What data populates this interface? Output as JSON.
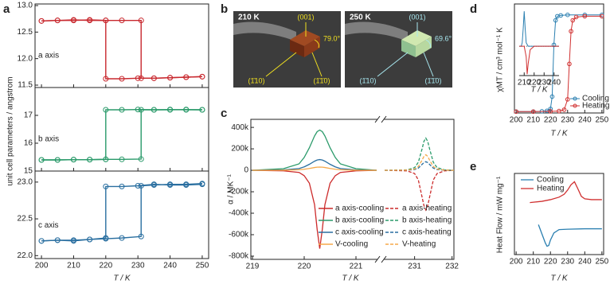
{
  "chart_data": [
    {
      "type": "line",
      "panel": "a",
      "xlabel": "T / K",
      "ylabel": "unit cell parameters / angstrom",
      "xlim": [
        198,
        252
      ],
      "xticks": [
        200,
        210,
        220,
        230,
        240,
        250
      ],
      "subplots": [
        {
          "label": "a axis",
          "color": "#c8282e",
          "ylim": [
            11.455,
            13.03
          ],
          "yticks": [
            11.5,
            {
              "value": 12,
              "label": "12.0"
            },
            12.5,
            {
              "value": 13,
              "label": "13.0"
            }
          ],
          "series": [
            {
              "x": [
                250,
                245,
                240,
                235,
                230,
                225,
                220,
                220,
                215,
                210,
                205,
                200
              ],
              "values": [
                11.66,
                11.65,
                11.64,
                11.63,
                11.63,
                11.62,
                11.62,
                12.72,
                12.72,
                12.73,
                12.72,
                12.71
              ]
            },
            {
              "x": [
                200,
                205,
                210,
                215,
                220,
                225,
                231,
                231,
                235,
                240,
                245,
                250
              ],
              "values": [
                12.71,
                12.72,
                12.72,
                12.73,
                12.72,
                12.72,
                12.72,
                11.63,
                11.63,
                11.64,
                11.65,
                11.66
              ]
            }
          ]
        },
        {
          "label": "b axis",
          "color": "#2a9a6a",
          "ylim": [
            15.0,
            18.0
          ],
          "yticks": [
            15,
            16,
            17
          ],
          "series": [
            {
              "x": [
                250,
                245,
                240,
                235,
                230,
                225,
                220,
                220,
                215,
                210,
                205,
                200
              ],
              "values": [
                17.2,
                17.21,
                17.2,
                17.2,
                17.21,
                17.2,
                17.2,
                15.42,
                15.41,
                15.41,
                15.4,
                15.4
              ]
            },
            {
              "x": [
                200,
                205,
                210,
                215,
                220,
                225,
                231,
                231,
                235,
                240,
                245,
                250
              ],
              "values": [
                15.4,
                15.4,
                15.41,
                15.41,
                15.42,
                15.42,
                15.43,
                17.2,
                17.2,
                17.21,
                17.2,
                17.2
              ]
            }
          ]
        },
        {
          "label": "c axis",
          "color": "#2a6fa0",
          "ylim": [
            21.96,
            23.15
          ],
          "yticks": [
            {
              "value": 22,
              "label": "22.0"
            },
            22.5,
            {
              "value": 23,
              "label": "23.0"
            }
          ],
          "series": [
            {
              "x": [
                250,
                245,
                240,
                235,
                230,
                225,
                220,
                220,
                215,
                210,
                205,
                200
              ],
              "values": [
                22.97,
                22.96,
                22.96,
                22.97,
                22.95,
                22.94,
                22.94,
                22.24,
                22.22,
                22.21,
                22.21,
                22.2
              ]
            },
            {
              "x": [
                200,
                205,
                210,
                215,
                220,
                225,
                231,
                231,
                235,
                240,
                245,
                250
              ],
              "values": [
                22.2,
                22.21,
                22.2,
                22.22,
                22.23,
                22.24,
                22.26,
                22.95,
                22.96,
                22.97,
                22.97,
                22.98
              ]
            }
          ]
        }
      ]
    },
    {
      "type": "line",
      "panel": "c",
      "xlabel": "T / K",
      "ylabel": "α / MK⁻¹",
      "xlim": [
        [
          219,
          221.4
        ],
        [
          230.2,
          232.05
        ]
      ],
      "xticks": [
        219,
        220,
        221,
        231,
        232
      ],
      "ylim": [
        -830000,
        475000
      ],
      "yticks": [
        {
          "value": -800000,
          "label": "-800k"
        },
        {
          "value": -600000,
          "label": "-600k"
        },
        {
          "value": -400000,
          "label": "-400k"
        },
        {
          "value": -200000,
          "label": "-200k"
        },
        0,
        {
          "value": 200000,
          "label": "200k"
        },
        {
          "value": 400000,
          "label": "400k"
        }
      ],
      "series": [
        {
          "name": "a axis-cooling",
          "color": "#cc2a2a",
          "linestyle": "solid",
          "x": [
            219,
            219.6,
            219.9,
            220,
            220.1,
            220.2,
            220.25,
            220.3,
            220.35,
            220.4,
            220.5,
            220.6,
            220.7,
            221,
            221.4
          ],
          "values": [
            0,
            -5000,
            -20000,
            -50000,
            -120000,
            -320000,
            -550000,
            -730000,
            -550000,
            -320000,
            -120000,
            -50000,
            -20000,
            -5000,
            0
          ]
        },
        {
          "name": "a axis-heating",
          "color": "#cc2a2a",
          "linestyle": "dashed",
          "x": [
            230.2,
            230.8,
            231,
            231.1,
            231.2,
            231.25,
            231.3,
            231.35,
            231.4,
            231.5,
            231.6,
            231.8,
            232.05
          ],
          "values": [
            0,
            -5000,
            -30000,
            -90000,
            -250000,
            -330000,
            -370000,
            -330000,
            -250000,
            -90000,
            -30000,
            -5000,
            0
          ]
        },
        {
          "name": "b axis-cooling",
          "color": "#2a9a6a",
          "linestyle": "solid",
          "x": [
            219,
            219.6,
            219.9,
            220,
            220.1,
            220.2,
            220.25,
            220.3,
            220.35,
            220.4,
            220.5,
            220.6,
            220.7,
            221,
            221.4
          ],
          "values": [
            0,
            15000,
            60000,
            120000,
            210000,
            320000,
            360000,
            375000,
            360000,
            320000,
            210000,
            120000,
            60000,
            15000,
            0
          ]
        },
        {
          "name": "b axis-heating",
          "color": "#2a9a6a",
          "linestyle": "dashed",
          "x": [
            230.2,
            230.8,
            231,
            231.1,
            231.2,
            231.25,
            231.3,
            231.35,
            231.4,
            231.5,
            231.6,
            231.8,
            232.05
          ],
          "values": [
            0,
            4000,
            25000,
            75000,
            200000,
            270000,
            300000,
            270000,
            200000,
            75000,
            25000,
            4000,
            0
          ]
        },
        {
          "name": "c axis-cooling",
          "color": "#2a6fa0",
          "linestyle": "solid",
          "x": [
            219,
            219.6,
            219.9,
            220,
            220.1,
            220.2,
            220.25,
            220.3,
            220.35,
            220.4,
            220.5,
            220.6,
            220.7,
            221,
            221.4
          ],
          "values": [
            0,
            4000,
            16000,
            32000,
            56000,
            85000,
            96000,
            100000,
            96000,
            85000,
            56000,
            32000,
            16000,
            4000,
            0
          ]
        },
        {
          "name": "c axis-heating",
          "color": "#2a6fa0",
          "linestyle": "dashed",
          "x": [
            230.2,
            230.8,
            231,
            231.1,
            231.2,
            231.25,
            231.3,
            231.35,
            231.4,
            231.5,
            231.6,
            231.8,
            232.05
          ],
          "values": [
            0,
            1000,
            7000,
            20000,
            55000,
            72000,
            80000,
            72000,
            55000,
            20000,
            7000,
            1000,
            0
          ]
        },
        {
          "name": "V-cooling",
          "color": "#f5a94a",
          "linestyle": "solid",
          "x": [
            219,
            219.6,
            219.9,
            220,
            220.1,
            220.2,
            220.25,
            220.3,
            220.35,
            220.4,
            220.5,
            220.6,
            220.7,
            221,
            221.4
          ],
          "values": [
            0,
            1000,
            5000,
            10000,
            17000,
            26000,
            29000,
            30000,
            29000,
            26000,
            17000,
            10000,
            5000,
            1000,
            0
          ]
        },
        {
          "name": "V-heating",
          "color": "#f5a94a",
          "linestyle": "dashed",
          "x": [
            230.2,
            230.8,
            231,
            231.1,
            231.2,
            231.25,
            231.3,
            231.35,
            231.4,
            231.5,
            231.6,
            231.8,
            232.05
          ],
          "values": [
            0,
            2000,
            12000,
            35000,
            95000,
            130000,
            145000,
            130000,
            95000,
            35000,
            12000,
            2000,
            0
          ]
        }
      ]
    },
    {
      "type": "line",
      "panel": "d",
      "xlabel": "T / K",
      "ylabel": "χMT / cm³ mol⁻¹ K",
      "xlim": [
        199,
        251
      ],
      "xticks": [
        200,
        210,
        220,
        230,
        240,
        250
      ],
      "ylim": [
        0,
        4
      ],
      "series": [
        {
          "name": "Cooling",
          "color": "#2a7fb0",
          "x": [
            200,
            210,
            215,
            218,
            220,
            221,
            222,
            223,
            224,
            226,
            230,
            240,
            250
          ],
          "values": [
            0.05,
            0.05,
            0.06,
            0.08,
            0.15,
            0.6,
            2.5,
            3.4,
            3.55,
            3.58,
            3.6,
            3.6,
            3.6
          ]
        },
        {
          "name": "Heating",
          "color": "#d03030",
          "x": [
            200,
            210,
            220,
            225,
            228,
            230,
            231,
            232,
            233,
            235,
            240,
            250
          ],
          "values": [
            0.05,
            0.05,
            0.06,
            0.07,
            0.12,
            0.5,
            1.8,
            3.0,
            3.4,
            3.52,
            3.55,
            3.55
          ]
        }
      ]
    },
    {
      "type": "line",
      "xlabel": "T / K",
      "xlim": [
        205,
        245
      ],
      "xticks": [
        210,
        220,
        230,
        240
      ],
      "ylim": [
        -0.84,
        1.05
      ],
      "series": [
        {
          "color": "#2a7fb0",
          "x": [
            205,
            207,
            208,
            209,
            210,
            211,
            212,
            214,
            220,
            230,
            245
          ],
          "values": [
            0,
            0,
            0.1,
            0.5,
            1,
            0.5,
            0.1,
            0,
            0,
            0,
            0
          ]
        },
        {
          "color": "#d03030",
          "x": [
            205,
            210,
            212,
            213,
            214,
            216,
            220,
            230,
            245
          ],
          "values": [
            0,
            0,
            -0.3,
            -0.8,
            -0.5,
            -0.1,
            0,
            0,
            0
          ]
        }
      ]
    },
    {
      "type": "line",
      "panel": "e",
      "xlabel": "T / K",
      "ylabel": "Heat Flow / mW mg⁻¹",
      "xlim": [
        199,
        251
      ],
      "xticks": [
        200,
        210,
        220,
        230,
        240,
        250
      ],
      "ylim": [
        -0.9,
        1.05
      ],
      "series": [
        {
          "name": "Cooling",
          "color": "#2a7fb0",
          "x": [
            213,
            215,
            217,
            218,
            219,
            220,
            222,
            225,
            230,
            240,
            250
          ],
          "values": [
            -0.18,
            -0.4,
            -0.62,
            -0.7,
            -0.68,
            -0.55,
            -0.38,
            -0.3,
            -0.29,
            -0.28,
            -0.28
          ]
        },
        {
          "name": "Heating",
          "color": "#d03030",
          "x": [
            208,
            215,
            220,
            225,
            228,
            230,
            232,
            234,
            236,
            238,
            240,
            244,
            250
          ],
          "values": [
            0.35,
            0.38,
            0.42,
            0.48,
            0.55,
            0.65,
            0.78,
            0.85,
            0.68,
            0.5,
            0.44,
            0.42,
            0.42
          ]
        }
      ]
    }
  ],
  "figure_b": {
    "panel": "b",
    "images": [
      {
        "temperature": "210 K",
        "labels": [
          "(001)",
          "79.0°",
          "(1̄10)",
          "(1̄1̄0)"
        ]
      },
      {
        "temperature": "250 K",
        "labels": [
          "(001)",
          "69.6°",
          "(1̄10)",
          "(1̄1̄0)"
        ]
      }
    ]
  }
}
